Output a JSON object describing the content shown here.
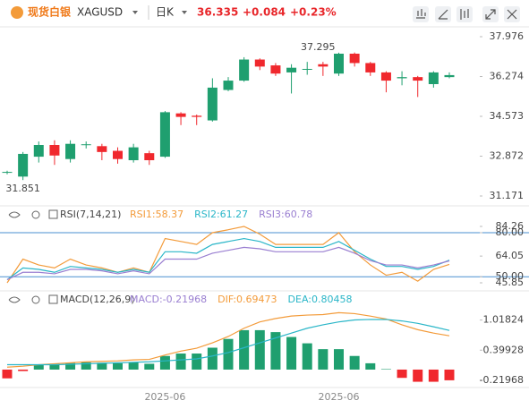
{
  "header": {
    "name": "现货白银",
    "symbol": "XAGUSD",
    "period": "日K",
    "price": "36.335",
    "change": "+0.084",
    "change_pct": "+0.23%"
  },
  "chart_data": [
    {
      "type": "candlestick",
      "categories": [
        null,
        null,
        null,
        null,
        null,
        null,
        null,
        null,
        null,
        null,
        "2025-06",
        null,
        null,
        null,
        null,
        null,
        null,
        null,
        null,
        null,
        null,
        "2025-06",
        null,
        null,
        null,
        null,
        null,
        null,
        null
      ],
      "open": [
        32.18,
        32.0,
        32.85,
        33.35,
        32.75,
        33.35,
        33.3,
        33.1,
        32.7,
        33.0,
        32.85,
        34.7,
        34.6,
        34.4,
        35.7,
        36.1,
        37.0,
        36.75,
        36.45,
        36.6,
        36.8,
        36.4,
        37.25,
        36.85,
        36.45,
        36.2,
        36.25,
        35.95,
        36.25
      ],
      "high": [
        32.25,
        33.05,
        33.5,
        33.55,
        33.55,
        33.5,
        33.4,
        33.25,
        33.4,
        33.1,
        34.8,
        34.75,
        34.65,
        36.2,
        36.25,
        37.1,
        37.05,
        36.85,
        36.8,
        36.9,
        36.9,
        37.295,
        37.3,
        36.9,
        36.5,
        36.5,
        36.3,
        36.5,
        36.45
      ],
      "low": [
        32.1,
        31.851,
        32.6,
        32.5,
        32.6,
        33.2,
        32.7,
        32.55,
        32.6,
        32.5,
        32.8,
        34.2,
        34.2,
        34.35,
        35.65,
        36.05,
        36.55,
        36.3,
        35.55,
        36.35,
        36.3,
        36.3,
        36.7,
        36.3,
        35.6,
        35.9,
        35.4,
        35.8,
        36.2
      ],
      "close": [
        32.2,
        32.97,
        33.35,
        32.9,
        33.4,
        33.38,
        33.05,
        32.75,
        33.25,
        32.7,
        34.75,
        34.55,
        34.55,
        35.8,
        36.1,
        37.0,
        36.7,
        36.4,
        36.65,
        36.6,
        36.7,
        37.25,
        36.85,
        36.45,
        36.1,
        36.25,
        36.1,
        36.45,
        36.335
      ],
      "up_color": "#1f9f6f",
      "down_color": "#f0282d",
      "ylim": [
        31.171,
        37.976
      ],
      "yticks": [
        37.976,
        36.274,
        34.573,
        32.872,
        31.171
      ],
      "high_marker_index": 21,
      "low_marker_index": 1
    },
    {
      "type": "line",
      "title": "RSI(7,14,21)",
      "series": [
        {
          "name": "RSI1:58.37",
          "color": "#f39b3a",
          "values": [
            45.85,
            62,
            58,
            56,
            62,
            58,
            56,
            53,
            56,
            53,
            76,
            74,
            72,
            80,
            82,
            84.26,
            79,
            72,
            72,
            72,
            72,
            80,
            67,
            58,
            51,
            53,
            47,
            55,
            58.37
          ]
        },
        {
          "name": "RSI2:61.27",
          "color": "#2ab6c8",
          "values": [
            48,
            56,
            55,
            53,
            57,
            56,
            55,
            53,
            55,
            53,
            67,
            67,
            66,
            72,
            74,
            76,
            74,
            70,
            70,
            70,
            70,
            74,
            68,
            62,
            57,
            57,
            55,
            57,
            61.27
          ]
        },
        {
          "name": "RSI3:60.78",
          "color": "#9a7fd1",
          "values": [
            48,
            53,
            53,
            52,
            55,
            55,
            54,
            52,
            54,
            52,
            62,
            62,
            62,
            66,
            68,
            70,
            69,
            67,
            67,
            67,
            67,
            70,
            66,
            61,
            58,
            58,
            56,
            58,
            60.78
          ]
        }
      ],
      "ylim": [
        45.85,
        84.26
      ],
      "yticks": [
        84.26,
        {
          "value": 80,
          "label": "80.00"
        },
        64.05,
        {
          "value": 50,
          "label": "50.00"
        },
        45.85
      ],
      "reference_lines": [
        80,
        50
      ],
      "reference_color": "#4a8fd0"
    },
    {
      "type": "macd",
      "title": "MACD(12,26,9)",
      "name": "MACD:-0.21968",
      "values": [
        -0.18,
        -0.03,
        0.1,
        0.12,
        0.14,
        0.15,
        0.14,
        0.13,
        0.15,
        0.12,
        0.28,
        0.33,
        0.33,
        0.45,
        0.63,
        0.81,
        0.81,
        0.77,
        0.67,
        0.54,
        0.42,
        0.42,
        0.28,
        0.13,
        0.01,
        -0.17,
        -0.25,
        -0.25,
        -0.21968
      ],
      "name_color": "#9a7fd1",
      "up_color": "#1f9f6f",
      "down_color": "#f0282d",
      "series": [
        {
          "name": "DIF:0.69473",
          "color": "#f39b3a",
          "values": [
            0.05,
            0.07,
            0.1,
            0.12,
            0.14,
            0.16,
            0.17,
            0.18,
            0.2,
            0.21,
            0.3,
            0.38,
            0.44,
            0.55,
            0.68,
            0.85,
            0.98,
            1.05,
            1.1,
            1.12,
            1.13,
            1.17,
            1.15,
            1.1,
            1.04,
            0.92,
            0.82,
            0.75,
            0.69473
          ]
        },
        {
          "name": "DEA:0.80458",
          "color": "#2ab6c8",
          "values": [
            0.1,
            0.1,
            0.1,
            0.1,
            0.11,
            0.12,
            0.13,
            0.14,
            0.15,
            0.16,
            0.18,
            0.2,
            0.22,
            0.28,
            0.35,
            0.45,
            0.55,
            0.65,
            0.75,
            0.85,
            0.92,
            0.98,
            1.02,
            1.03,
            1.03,
            1.0,
            0.95,
            0.88,
            0.80458
          ]
        }
      ],
      "ylim": [
        -0.35,
        1.25
      ],
      "yticks": [
        1.01824,
        0.39928,
        -0.21968
      ]
    }
  ]
}
